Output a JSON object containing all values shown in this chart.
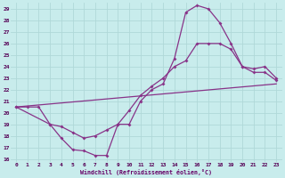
{
  "xlabel": "Windchill (Refroidissement éolien,°C)",
  "bg_color": "#c8ecec",
  "grid_color": "#b0d8d8",
  "line_color": "#883388",
  "xlim": [
    -0.5,
    23.5
  ],
  "ylim": [
    15.7,
    29.5
  ],
  "xticks": [
    0,
    1,
    2,
    3,
    4,
    5,
    6,
    7,
    8,
    9,
    10,
    11,
    12,
    13,
    14,
    15,
    16,
    17,
    18,
    19,
    20,
    21,
    22,
    23
  ],
  "yticks": [
    16,
    17,
    18,
    19,
    20,
    21,
    22,
    23,
    24,
    25,
    26,
    27,
    28,
    29
  ],
  "line1_x": [
    0,
    1,
    2,
    3,
    4,
    5,
    6,
    7,
    8,
    9,
    10,
    11,
    12,
    13,
    14,
    15,
    16,
    17,
    18,
    19,
    20,
    21,
    22,
    23
  ],
  "line1_y": [
    20.5,
    20.5,
    20.5,
    19.0,
    17.8,
    16.8,
    16.7,
    16.3,
    16.3,
    19.0,
    19.0,
    21.0,
    22.0,
    22.5,
    24.7,
    28.7,
    29.3,
    29.0,
    27.8,
    26.0,
    24.0,
    23.5,
    23.5,
    22.8
  ],
  "line2_x": [
    0,
    3,
    4,
    5,
    6,
    7,
    8,
    9,
    10,
    11,
    12,
    13,
    14,
    15,
    16,
    17,
    18,
    19,
    20,
    21,
    22,
    23
  ],
  "line2_y": [
    20.5,
    19.0,
    18.8,
    18.3,
    17.8,
    18.0,
    18.5,
    19.0,
    20.2,
    21.5,
    22.3,
    23.0,
    24.0,
    24.5,
    26.0,
    26.0,
    26.0,
    25.5,
    24.0,
    23.8,
    24.0,
    23.0
  ],
  "line3_x": [
    0,
    23
  ],
  "line3_y": [
    20.5,
    22.5
  ]
}
